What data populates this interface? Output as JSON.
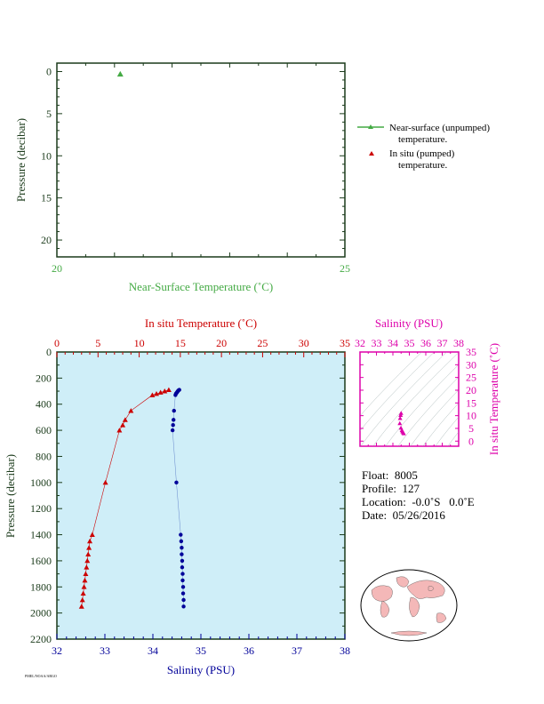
{
  "colors": {
    "green": "#44aa44",
    "red": "#cc0000",
    "blue": "#000099",
    "magenta": "#dd00aa",
    "plot_bg": "#cfeef8",
    "axis": "#1a3a1a"
  },
  "top_chart": {
    "type": "scatter",
    "xlabel": "Near-Surface Temperature (˚C)",
    "ylabel": "Pressure (decibar)",
    "xlim": [
      20,
      25
    ],
    "ylim": [
      22,
      -1
    ],
    "x_ticks": [
      "20",
      "25"
    ],
    "y_ticks": [
      "0",
      "5",
      "10",
      "15",
      "20"
    ],
    "points": [
      {
        "x": 21.1,
        "y": 0.3
      }
    ]
  },
  "legend": {
    "near_surface": "Near-surface (unpumped)",
    "near_surface_2": "temperature.",
    "in_situ": "In situ (pumped)",
    "in_situ_2": "temperature."
  },
  "chart_data": {
    "type": "line",
    "title": "",
    "ylabel": "Pressure (decibar)",
    "ylim": [
      2200,
      0
    ],
    "y_ticks": [
      "0",
      "200",
      "400",
      "600",
      "800",
      "1000",
      "1200",
      "1400",
      "1600",
      "1800",
      "2000",
      "2200"
    ],
    "top_axis": {
      "label": "In situ Temperature (˚C)",
      "lim": [
        0,
        35
      ],
      "ticks": [
        "0",
        "5",
        "10",
        "15",
        "20",
        "25",
        "30",
        "35"
      ]
    },
    "bottom_axis": {
      "label": "Salinity (PSU)",
      "lim": [
        32,
        38
      ],
      "ticks": [
        "32",
        "33",
        "34",
        "35",
        "36",
        "37",
        "38"
      ]
    },
    "series": [
      {
        "axis": "temperature",
        "points": [
          {
            "t": 13.6,
            "p": 290
          },
          {
            "t": 13.1,
            "p": 300
          },
          {
            "t": 12.6,
            "p": 310
          },
          {
            "t": 12.1,
            "p": 320
          },
          {
            "t": 11.6,
            "p": 330
          },
          {
            "t": 9.0,
            "p": 450
          },
          {
            "t": 8.3,
            "p": 520
          },
          {
            "t": 8.0,
            "p": 560
          },
          {
            "t": 7.6,
            "p": 600
          },
          {
            "t": 5.9,
            "p": 1000
          },
          {
            "t": 4.3,
            "p": 1400
          },
          {
            "t": 4.0,
            "p": 1450
          },
          {
            "t": 3.9,
            "p": 1500
          },
          {
            "t": 3.8,
            "p": 1550
          },
          {
            "t": 3.7,
            "p": 1600
          },
          {
            "t": 3.6,
            "p": 1650
          },
          {
            "t": 3.5,
            "p": 1700
          },
          {
            "t": 3.4,
            "p": 1750
          },
          {
            "t": 3.3,
            "p": 1800
          },
          {
            "t": 3.2,
            "p": 1850
          },
          {
            "t": 3.1,
            "p": 1900
          },
          {
            "t": 3.0,
            "p": 1950
          }
        ]
      },
      {
        "axis": "salinity",
        "points": [
          {
            "s": 34.55,
            "p": 290
          },
          {
            "s": 34.53,
            "p": 295
          },
          {
            "s": 34.52,
            "p": 300
          },
          {
            "s": 34.51,
            "p": 305
          },
          {
            "s": 34.5,
            "p": 310
          },
          {
            "s": 34.49,
            "p": 315
          },
          {
            "s": 34.48,
            "p": 320
          },
          {
            "s": 34.47,
            "p": 330
          },
          {
            "s": 34.44,
            "p": 450
          },
          {
            "s": 34.43,
            "p": 520
          },
          {
            "s": 34.42,
            "p": 560
          },
          {
            "s": 34.41,
            "p": 600
          },
          {
            "s": 34.49,
            "p": 1000
          },
          {
            "s": 34.58,
            "p": 1400
          },
          {
            "s": 34.59,
            "p": 1450
          },
          {
            "s": 34.6,
            "p": 1500
          },
          {
            "s": 34.6,
            "p": 1550
          },
          {
            "s": 34.61,
            "p": 1600
          },
          {
            "s": 34.61,
            "p": 1650
          },
          {
            "s": 34.62,
            "p": 1700
          },
          {
            "s": 34.62,
            "p": 1750
          },
          {
            "s": 34.63,
            "p": 1800
          },
          {
            "s": 34.63,
            "p": 1850
          },
          {
            "s": 34.64,
            "p": 1900
          },
          {
            "s": 34.64,
            "p": 1950
          }
        ]
      }
    ]
  },
  "ts_chart": {
    "type": "scatter",
    "xlabel": "Salinity (PSU)",
    "ylabel": "In situ Temperature (˚C)",
    "xlim": [
      32,
      38
    ],
    "ylim": [
      -2,
      35
    ],
    "x_ticks": [
      "32",
      "33",
      "34",
      "35",
      "36",
      "37",
      "38"
    ],
    "y_ticks": [
      "0",
      "5",
      "10",
      "15",
      "20",
      "25",
      "30",
      "35"
    ],
    "points": [
      {
        "s": 34.5,
        "t": 11.0
      },
      {
        "s": 34.47,
        "t": 10.2
      },
      {
        "s": 34.44,
        "t": 9.0
      },
      {
        "s": 34.42,
        "t": 7.0
      },
      {
        "s": 34.49,
        "t": 5.2
      },
      {
        "s": 34.55,
        "t": 4.3
      },
      {
        "s": 34.58,
        "t": 3.8
      },
      {
        "s": 34.62,
        "t": 3.4
      },
      {
        "s": 34.66,
        "t": 3.0
      }
    ]
  },
  "float_info": {
    "float": "Float:  8005",
    "profile": "Profile:  127",
    "location": "Location:  -0.0˚S   0.0˚E",
    "date": "Date:  05/26/2016"
  },
  "footer": "PMEL/NOAA/ARGO"
}
